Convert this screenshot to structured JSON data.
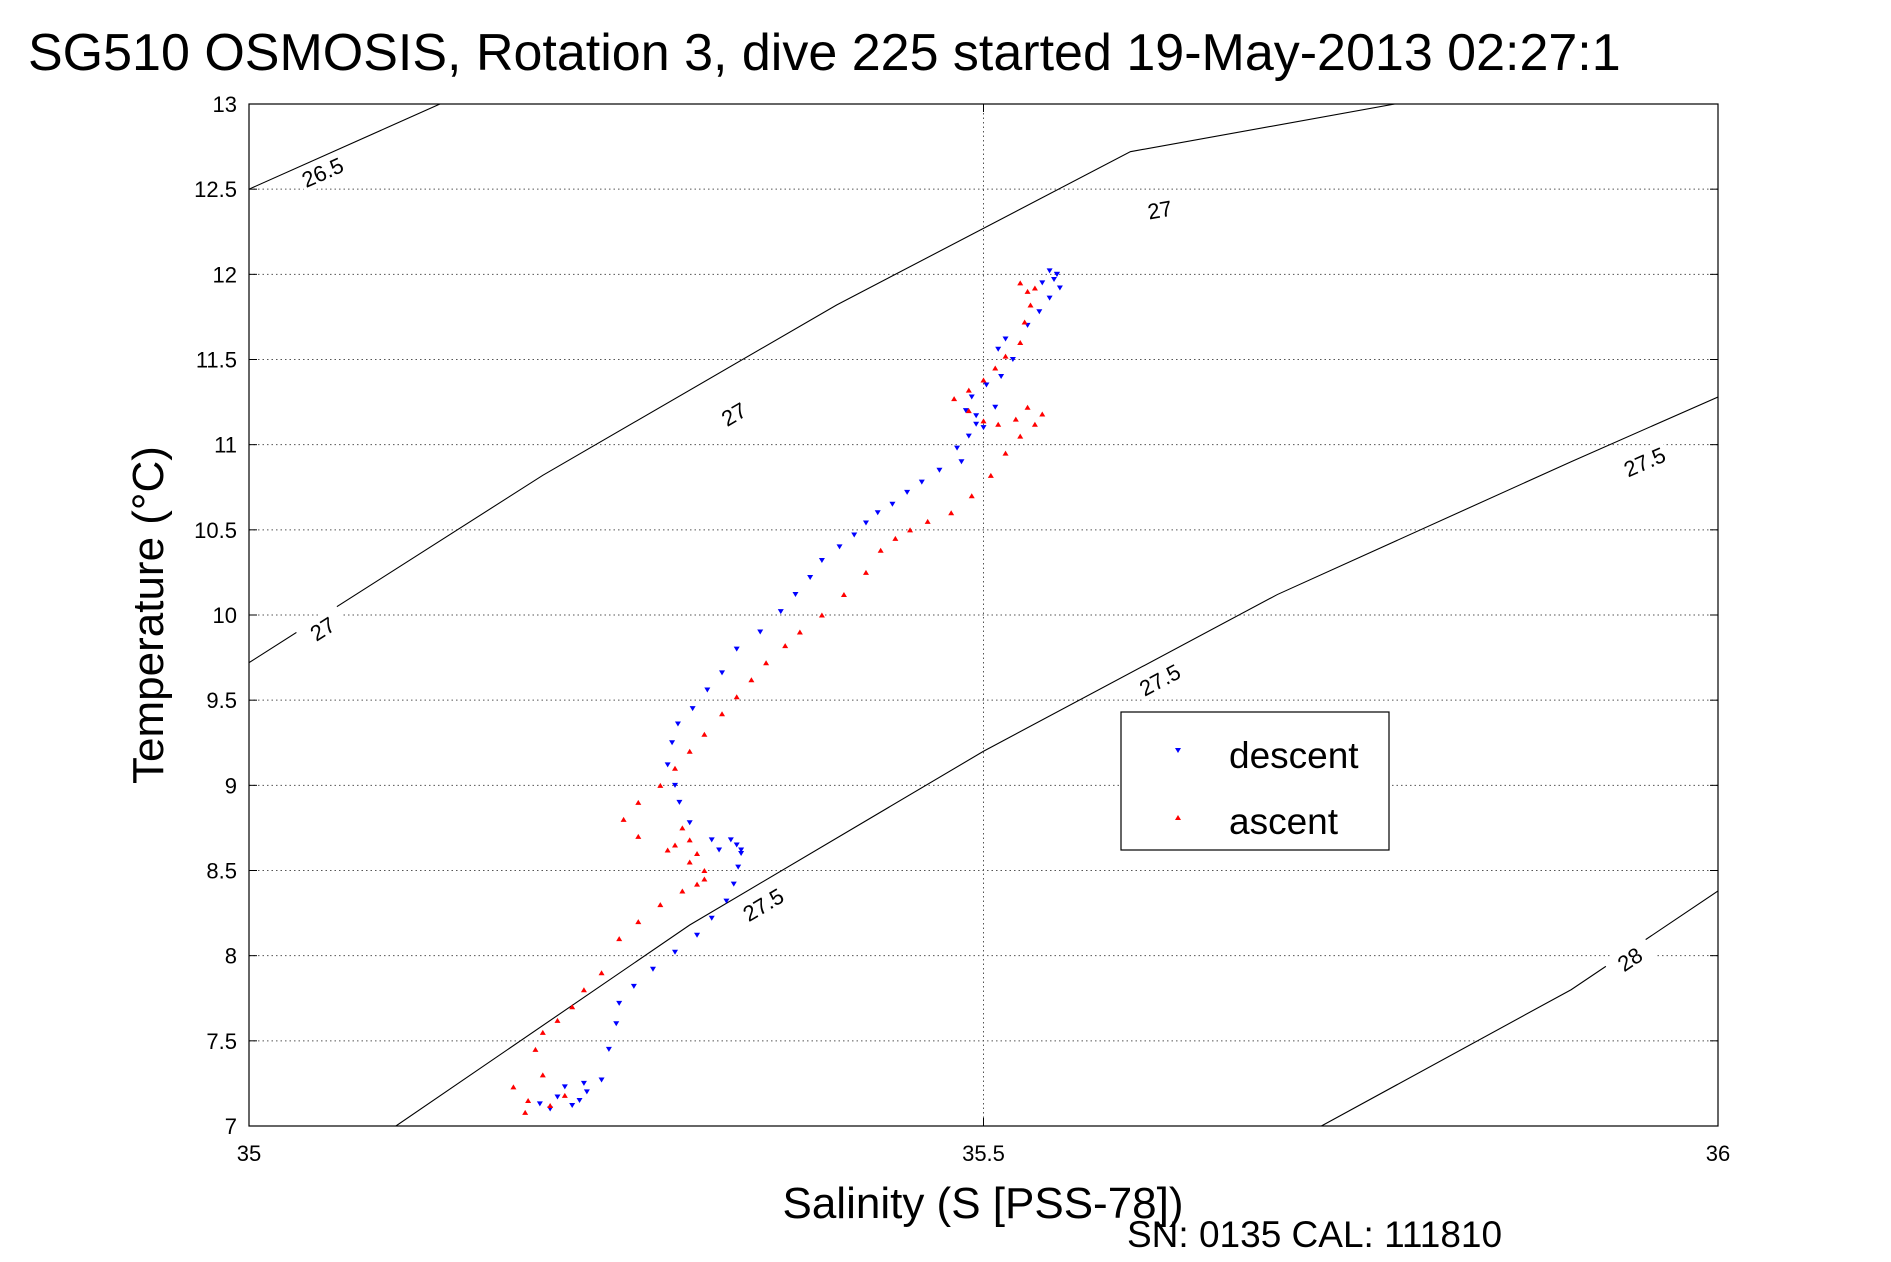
{
  "chart_data": {
    "type": "scatter",
    "title": "SG510 OSMOSIS, Rotation 3, dive 225 started 19-May-2013 02:27:1",
    "xlabel": "Salinity (S [PSS-78])",
    "ylabel": "Temperature (°C)",
    "xlim": [
      35,
      36
    ],
    "ylim": [
      7,
      13
    ],
    "grid": true,
    "legend_position": "right",
    "x_ticks": [
      35,
      35.5,
      36
    ],
    "x_tick_labels": [
      "35",
      "35.5",
      "36"
    ],
    "y_ticks": [
      7,
      7.5,
      8,
      8.5,
      9,
      9.5,
      10,
      10.5,
      11,
      11.5,
      12,
      12.5,
      13
    ],
    "y_tick_labels": [
      "7",
      "7.5",
      "8",
      "8.5",
      "9",
      "9.5",
      "10",
      "10.5",
      "11",
      "11.5",
      "12",
      "12.5",
      "13"
    ],
    "contours": [
      {
        "level": "26.5",
        "points": [
          [
            35,
            12.5
          ],
          [
            35.13,
            13
          ]
        ],
        "labels": [
          [
            35.05,
            12.6
          ]
        ]
      },
      {
        "level": "27",
        "points": [
          [
            35,
            9.72
          ],
          [
            35.2,
            10.82
          ],
          [
            35.4,
            11.82
          ],
          [
            35.6,
            12.72
          ],
          [
            35.78,
            13
          ]
        ],
        "labels": [
          [
            35.05,
            9.92
          ],
          [
            35.33,
            11.18
          ],
          [
            35.62,
            12.38
          ]
        ]
      },
      {
        "level": "27.5",
        "points": [
          [
            35.1,
            7
          ],
          [
            35.3,
            8.18
          ],
          [
            35.5,
            9.2
          ],
          [
            35.7,
            10.12
          ],
          [
            35.9,
            10.9
          ],
          [
            36,
            11.28
          ]
        ],
        "labels": [
          [
            35.35,
            8.3
          ],
          [
            35.62,
            9.62
          ],
          [
            35.95,
            10.9
          ]
        ]
      },
      {
        "level": "28",
        "points": [
          [
            35.73,
            7
          ],
          [
            35.9,
            7.8
          ],
          [
            36,
            8.38
          ]
        ],
        "labels": [
          [
            35.94,
            7.98
          ]
        ]
      }
    ],
    "series": [
      {
        "name": "descent",
        "color": "#0000ff",
        "marker": "triangle-down",
        "x": [
          35.225,
          35.23,
          35.228,
          35.215,
          35.21,
          35.198,
          35.205,
          35.22,
          35.24,
          35.245,
          35.25,
          35.252,
          35.262,
          35.275,
          35.29,
          35.305,
          35.315,
          35.325,
          35.33,
          35.333,
          35.335,
          35.332,
          35.328,
          35.335,
          35.32,
          35.315,
          35.3,
          35.293,
          35.29,
          35.285,
          35.288,
          35.292,
          35.302,
          35.312,
          35.322,
          35.332,
          35.348,
          35.362,
          35.372,
          35.382,
          35.39,
          35.402,
          35.412,
          35.42,
          35.428,
          35.438,
          35.448,
          35.458,
          35.47,
          35.485,
          35.482,
          35.49,
          35.495,
          35.488,
          35.492,
          35.502,
          35.508,
          35.495,
          35.5,
          35.512,
          35.52,
          35.51,
          35.515,
          35.53,
          35.538,
          35.545,
          35.552,
          35.548,
          35.55,
          35.545,
          35.55,
          35.54
        ],
        "y": [
          7.15,
          7.2,
          7.25,
          7.23,
          7.17,
          7.13,
          7.1,
          7.12,
          7.27,
          7.45,
          7.6,
          7.72,
          7.82,
          7.92,
          8.02,
          8.12,
          8.22,
          8.32,
          8.42,
          8.52,
          8.62,
          8.65,
          8.68,
          8.6,
          8.62,
          8.68,
          8.78,
          8.9,
          9.0,
          9.12,
          9.25,
          9.36,
          9.45,
          9.56,
          9.66,
          9.8,
          9.9,
          10.02,
          10.12,
          10.22,
          10.32,
          10.4,
          10.47,
          10.54,
          10.6,
          10.65,
          10.72,
          10.78,
          10.85,
          10.9,
          10.98,
          11.05,
          11.12,
          11.2,
          11.28,
          11.35,
          11.22,
          11.17,
          11.1,
          11.4,
          11.5,
          11.56,
          11.62,
          11.7,
          11.78,
          11.86,
          11.92,
          11.97,
          12.0,
          12.02,
          12.0,
          11.95
        ]
      },
      {
        "name": "ascent",
        "color": "#ff0000",
        "marker": "triangle-up",
        "x": [
          35.18,
          35.19,
          35.188,
          35.205,
          35.215,
          35.2,
          35.195,
          35.2,
          35.21,
          35.22,
          35.228,
          35.24,
          35.252,
          35.265,
          35.28,
          35.295,
          35.31,
          35.3,
          35.29,
          35.295,
          35.3,
          35.305,
          35.31,
          35.305,
          35.285,
          35.265,
          35.255,
          35.265,
          35.28,
          35.29,
          35.3,
          35.31,
          35.322,
          35.332,
          35.342,
          35.352,
          35.365,
          35.375,
          35.39,
          35.405,
          35.42,
          35.43,
          35.44,
          35.45,
          35.462,
          35.478,
          35.492,
          35.505,
          35.515,
          35.525,
          35.535,
          35.54,
          35.53,
          35.522,
          35.51,
          35.5,
          35.49,
          35.48,
          35.49,
          35.5,
          35.508,
          35.515,
          35.525,
          35.528,
          35.532,
          35.535,
          35.525,
          35.53
        ],
        "y": [
          7.23,
          7.15,
          7.08,
          7.12,
          7.18,
          7.3,
          7.45,
          7.55,
          7.62,
          7.7,
          7.8,
          7.9,
          8.1,
          8.2,
          8.3,
          8.38,
          8.45,
          8.55,
          8.65,
          8.75,
          8.68,
          8.6,
          8.5,
          8.42,
          8.62,
          8.7,
          8.8,
          8.9,
          9.0,
          9.1,
          9.2,
          9.3,
          9.42,
          9.52,
          9.62,
          9.72,
          9.82,
          9.9,
          10.0,
          10.12,
          10.25,
          10.38,
          10.45,
          10.5,
          10.55,
          10.6,
          10.7,
          10.82,
          10.95,
          11.05,
          11.12,
          11.18,
          11.22,
          11.15,
          11.12,
          11.14,
          11.2,
          11.27,
          11.32,
          11.38,
          11.45,
          11.52,
          11.6,
          11.72,
          11.82,
          11.92,
          11.95,
          11.9
        ]
      }
    ],
    "legend": [
      {
        "label": "descent",
        "color": "#0000ff",
        "marker": "triangle-down"
      },
      {
        "label": "ascent",
        "color": "#ff0000",
        "marker": "triangle-up"
      }
    ]
  },
  "footer": {
    "sn_cal": "SN: 0135  CAL: 111810"
  }
}
